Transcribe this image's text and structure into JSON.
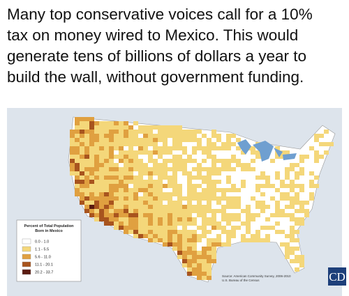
{
  "caption": [
    "Many top conservative voices call for a 10%",
    "tax on money wired to Mexico. This would",
    "generate tens of billions of dollars a year to",
    "build the wall, without government funding."
  ],
  "map": {
    "legend": {
      "title": [
        "Percent of Total Population",
        "Born in Mexico"
      ],
      "items": [
        {
          "label": "0.0 - 1.0",
          "color": "#ffffff"
        },
        {
          "label": "1.1 - 5.5",
          "color": "#f4d77a"
        },
        {
          "label": "5.6 - 11.0",
          "color": "#e0a040"
        },
        {
          "label": "11.1 - 20.1",
          "color": "#a8541e"
        },
        {
          "label": "20.2 - 33.7",
          "color": "#5a1a10"
        }
      ]
    },
    "source": [
      "Source: American Community Survey, 2006-2010",
      "U.S. Bureau of the Census"
    ],
    "logo": "CD"
  }
}
